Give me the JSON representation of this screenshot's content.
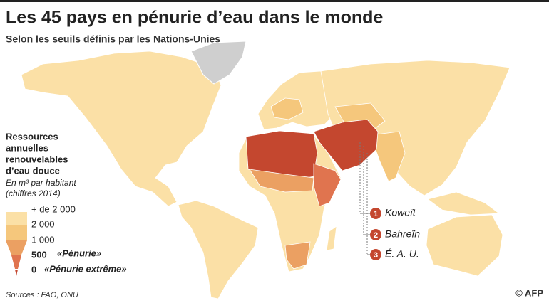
{
  "header": {
    "title": "Les 45 pays en pénurie d’eau dans le monde",
    "subtitle": "Selon les seuils définis par les Nations-Unies"
  },
  "legend": {
    "title_lines": [
      "Ressources",
      "annuelles",
      "renouvelables",
      "d’eau douce"
    ],
    "unit": "En m³ par habitant",
    "note": "(chiffres 2014)",
    "items": [
      {
        "label": "+ de 2 000"
      },
      {
        "label": "2 000"
      },
      {
        "label": "1 000"
      },
      {
        "label": "500",
        "note": "«Pénurie»"
      },
      {
        "label": "0",
        "note": "«Pénurie extrême»"
      }
    ]
  },
  "callouts": [
    {
      "number": "1",
      "label": "Koweït"
    },
    {
      "number": "2",
      "label": "Bahreïn"
    },
    {
      "number": "3",
      "label": "É. A. U."
    }
  ],
  "footer": {
    "source": "Sources : FAO, ONU",
    "credit": "© AFP"
  }
}
